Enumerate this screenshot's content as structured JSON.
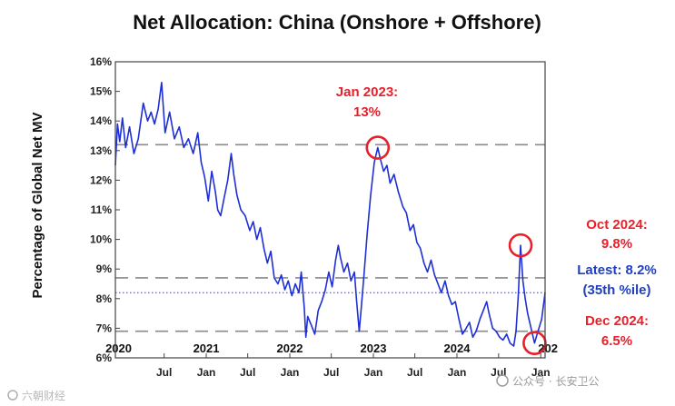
{
  "chart_data": {
    "type": "line",
    "title": "Net Allocation: China (Onshore + Offshore)",
    "ylabel": "Percentage of Global Net MV",
    "ylim": [
      6,
      16
    ],
    "yticks": [
      "6%",
      "7%",
      "8%",
      "9%",
      "10%",
      "11%",
      "12%",
      "13%",
      "14%",
      "15%",
      "16%"
    ],
    "xlim": [
      "2019-12-01",
      "2025-01-20"
    ],
    "year_labels": [
      {
        "label": "2020",
        "date": "2019-12-15"
      },
      {
        "label": "2021",
        "date": "2021-01-01"
      },
      {
        "label": "2022",
        "date": "2022-01-01"
      },
      {
        "label": "2023",
        "date": "2023-01-01"
      },
      {
        "label": "2024",
        "date": "2024-01-01"
      },
      {
        "label": "202",
        "date": "2025-01-20"
      }
    ],
    "month_labels": [
      {
        "label": "Jul",
        "date": "2020-07-01"
      },
      {
        "label": "Jan",
        "date": "2021-01-01"
      },
      {
        "label": "Jul",
        "date": "2021-07-01"
      },
      {
        "label": "Jan",
        "date": "2022-01-01"
      },
      {
        "label": "Jul",
        "date": "2022-07-01"
      },
      {
        "label": "Jan",
        "date": "2023-01-01"
      },
      {
        "label": "Jul",
        "date": "2023-07-01"
      },
      {
        "label": "Jan",
        "date": "2024-01-01"
      },
      {
        "label": "Jul",
        "date": "2024-07-01"
      },
      {
        "label": "Jan",
        "date": "2025-01-01"
      }
    ],
    "reference_lines": [
      {
        "value": 13.2,
        "style": "dashed",
        "color": "#8a8a8a"
      },
      {
        "value": 8.7,
        "style": "dashed",
        "color": "#8a8a8a"
      },
      {
        "value": 6.9,
        "style": "dashed",
        "color": "#8a8a8a"
      },
      {
        "value": 8.2,
        "style": "dotted",
        "color": "#6b6bdc"
      }
    ],
    "series": [
      {
        "color": "#1f2fd6",
        "points": [
          [
            "2019-12-01",
            12.5
          ],
          [
            "2019-12-10",
            13.9
          ],
          [
            "2019-12-20",
            13.3
          ],
          [
            "2020-01-01",
            14.1
          ],
          [
            "2020-01-15",
            13.1
          ],
          [
            "2020-02-01",
            13.8
          ],
          [
            "2020-02-20",
            12.9
          ],
          [
            "2020-03-10",
            13.4
          ],
          [
            "2020-04-01",
            14.6
          ],
          [
            "2020-04-20",
            14.0
          ],
          [
            "2020-05-05",
            14.3
          ],
          [
            "2020-05-20",
            13.9
          ],
          [
            "2020-06-05",
            14.4
          ],
          [
            "2020-06-20",
            15.3
          ],
          [
            "2020-07-05",
            13.6
          ],
          [
            "2020-07-25",
            14.3
          ],
          [
            "2020-08-15",
            13.4
          ],
          [
            "2020-09-05",
            13.8
          ],
          [
            "2020-09-25",
            13.1
          ],
          [
            "2020-10-15",
            13.4
          ],
          [
            "2020-11-05",
            12.9
          ],
          [
            "2020-11-25",
            13.6
          ],
          [
            "2020-12-10",
            12.6
          ],
          [
            "2020-12-25",
            12.1
          ],
          [
            "2021-01-10",
            11.3
          ],
          [
            "2021-01-25",
            12.3
          ],
          [
            "2021-02-10",
            11.6
          ],
          [
            "2021-02-20",
            11.0
          ],
          [
            "2021-03-05",
            10.8
          ],
          [
            "2021-03-20",
            11.4
          ],
          [
            "2021-04-05",
            12.0
          ],
          [
            "2021-04-20",
            12.9
          ],
          [
            "2021-05-01",
            12.2
          ],
          [
            "2021-05-15",
            11.5
          ],
          [
            "2021-06-01",
            11.0
          ],
          [
            "2021-06-20",
            10.8
          ],
          [
            "2021-07-10",
            10.3
          ],
          [
            "2021-07-25",
            10.6
          ],
          [
            "2021-08-10",
            10.0
          ],
          [
            "2021-08-25",
            10.4
          ],
          [
            "2021-09-10",
            9.7
          ],
          [
            "2021-09-25",
            9.2
          ],
          [
            "2021-10-10",
            9.6
          ],
          [
            "2021-10-25",
            8.7
          ],
          [
            "2021-11-10",
            8.5
          ],
          [
            "2021-11-25",
            8.8
          ],
          [
            "2021-12-10",
            8.3
          ],
          [
            "2021-12-25",
            8.6
          ],
          [
            "2022-01-10",
            8.1
          ],
          [
            "2022-01-25",
            8.5
          ],
          [
            "2022-02-10",
            8.2
          ],
          [
            "2022-02-20",
            8.9
          ],
          [
            "2022-03-05",
            7.7
          ],
          [
            "2022-03-12",
            6.7
          ],
          [
            "2022-03-20",
            7.4
          ],
          [
            "2022-04-05",
            7.1
          ],
          [
            "2022-04-20",
            6.8
          ],
          [
            "2022-05-05",
            7.6
          ],
          [
            "2022-05-20",
            7.9
          ],
          [
            "2022-06-05",
            8.3
          ],
          [
            "2022-06-20",
            8.9
          ],
          [
            "2022-07-05",
            8.4
          ],
          [
            "2022-07-20",
            9.3
          ],
          [
            "2022-08-01",
            9.8
          ],
          [
            "2022-08-10",
            9.4
          ],
          [
            "2022-08-25",
            8.9
          ],
          [
            "2022-09-10",
            9.2
          ],
          [
            "2022-09-25",
            8.6
          ],
          [
            "2022-10-10",
            8.9
          ],
          [
            "2022-10-20",
            7.9
          ],
          [
            "2022-10-31",
            6.9
          ],
          [
            "2022-11-08",
            7.6
          ],
          [
            "2022-11-20",
            8.7
          ],
          [
            "2022-12-05",
            10.2
          ],
          [
            "2022-12-20",
            11.5
          ],
          [
            "2023-01-05",
            12.6
          ],
          [
            "2023-01-20",
            13.1
          ],
          [
            "2023-02-01",
            12.7
          ],
          [
            "2023-02-15",
            12.3
          ],
          [
            "2023-03-01",
            12.5
          ],
          [
            "2023-03-15",
            11.9
          ],
          [
            "2023-04-01",
            12.2
          ],
          [
            "2023-04-20",
            11.6
          ],
          [
            "2023-05-10",
            11.1
          ],
          [
            "2023-05-25",
            10.9
          ],
          [
            "2023-06-10",
            10.3
          ],
          [
            "2023-06-25",
            10.5
          ],
          [
            "2023-07-10",
            9.9
          ],
          [
            "2023-07-25",
            9.7
          ],
          [
            "2023-08-10",
            9.2
          ],
          [
            "2023-08-25",
            8.9
          ],
          [
            "2023-09-10",
            9.3
          ],
          [
            "2023-09-25",
            8.8
          ],
          [
            "2023-10-10",
            8.5
          ],
          [
            "2023-10-25",
            8.2
          ],
          [
            "2023-11-10",
            8.6
          ],
          [
            "2023-11-25",
            8.1
          ],
          [
            "2023-12-10",
            7.8
          ],
          [
            "2023-12-25",
            7.9
          ],
          [
            "2024-01-10",
            7.3
          ],
          [
            "2024-01-25",
            6.8
          ],
          [
            "2024-02-10",
            7.0
          ],
          [
            "2024-02-25",
            7.2
          ],
          [
            "2024-03-10",
            6.7
          ],
          [
            "2024-03-25",
            6.9
          ],
          [
            "2024-04-10",
            7.3
          ],
          [
            "2024-04-25",
            7.6
          ],
          [
            "2024-05-10",
            7.9
          ],
          [
            "2024-05-20",
            7.5
          ],
          [
            "2024-06-05",
            7.0
          ],
          [
            "2024-06-20",
            6.9
          ],
          [
            "2024-07-05",
            6.7
          ],
          [
            "2024-07-20",
            6.6
          ],
          [
            "2024-08-05",
            6.8
          ],
          [
            "2024-08-20",
            6.5
          ],
          [
            "2024-09-05",
            6.4
          ],
          [
            "2024-09-15",
            6.9
          ],
          [
            "2024-09-25",
            8.1
          ],
          [
            "2024-10-05",
            9.8
          ],
          [
            "2024-10-15",
            8.6
          ],
          [
            "2024-10-25",
            8.0
          ],
          [
            "2024-11-05",
            7.5
          ],
          [
            "2024-11-20",
            7.0
          ],
          [
            "2024-12-05",
            6.5
          ],
          [
            "2024-12-20",
            6.9
          ],
          [
            "2025-01-05",
            7.3
          ],
          [
            "2025-01-20",
            8.2
          ]
        ]
      }
    ],
    "highlights": [
      {
        "date": "2023-01-20",
        "value": 13.1
      },
      {
        "date": "2024-10-05",
        "value": 9.8
      },
      {
        "date": "2024-12-05",
        "value": 6.5
      }
    ],
    "annotations": {
      "jan2023_line1": "Jan 2023:",
      "jan2023_line2": "13%",
      "oct2024_line1": "Oct 2024:",
      "oct2024_line2": "9.8%",
      "latest_line1": "Latest: 8.2%",
      "latest_line2": "(35th %ile)",
      "dec2024_line1": "Dec 2024:",
      "dec2024_line2": "6.5%"
    },
    "colors": {
      "series": "#1f2fd6",
      "highlight": "#e8202a",
      "latest": "#1f3fbf",
      "reference": "#8a8a8a"
    }
  },
  "watermarks": {
    "left": "六朝财经",
    "right": "公众号 · 长安卫公"
  }
}
